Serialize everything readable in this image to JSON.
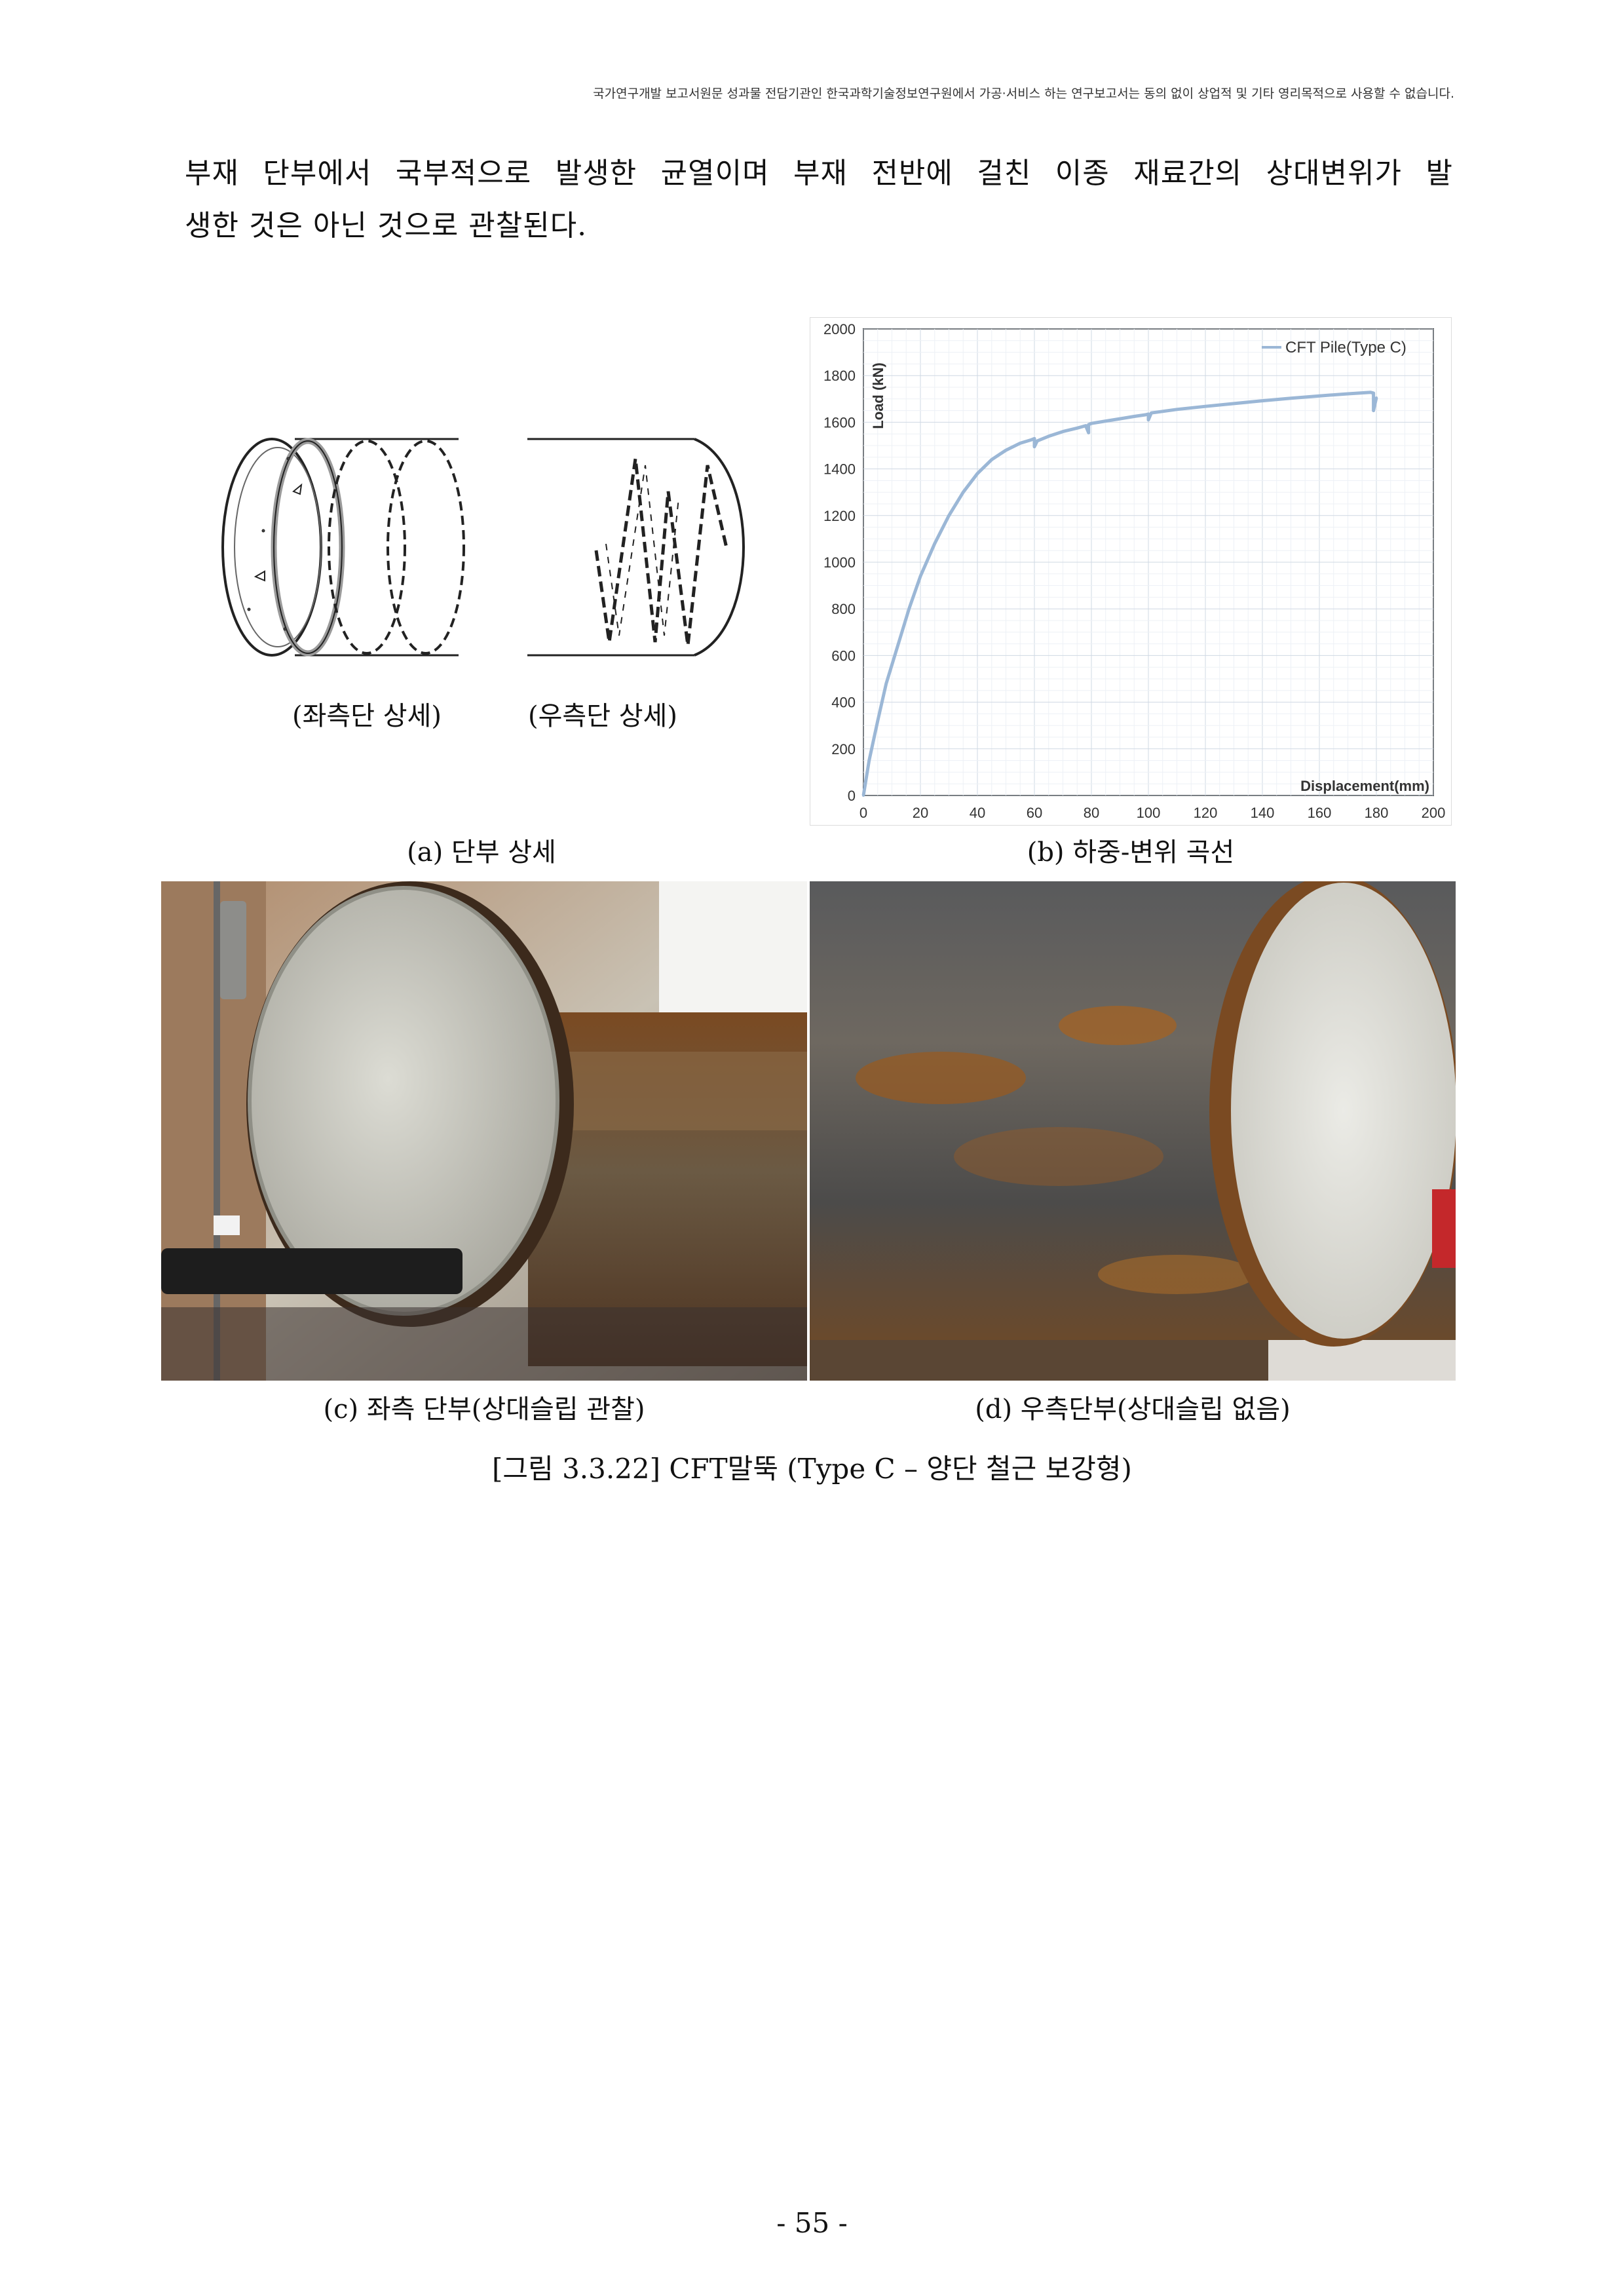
{
  "header_note": "국가연구개발 보고서원문 성과물 전담기관인 한국과학기술정보연구원에서 가공·서비스 하는 연구보고서는 동의 없이 상업적 및 기타 영리목적으로 사용할 수 없습니다.",
  "body": {
    "line1": "부재 단부에서 국부적으로 발생한 균열이며 부재 전반에 걸친 이종 재료간의 상대변위가 발",
    "line2": "생한 것은 아닌 것으로 관찰된다."
  },
  "figure": {
    "sketch_left_label": "(좌측단 상세)",
    "sketch_right_label": "(우측단 상세)",
    "caption_a": "(a) 단부 상세",
    "caption_b": "(b) 하중-변위 곡선",
    "caption_c": "(c) 좌측 단부(상대슬립 관찰)",
    "caption_d": "(d) 우측단부(상대슬립 없음)",
    "caption": "[그림 3.3.22] CFT말뚝 (Type C  –  양단 철근 보강형)"
  },
  "page_number": "- 55 -",
  "chart_data": {
    "type": "line",
    "xlabel": "Displacement(mm)",
    "ylabel": "Load (kN)",
    "xlim": [
      0,
      200
    ],
    "ylim": [
      0,
      2000
    ],
    "xticks": [
      0,
      20,
      40,
      60,
      80,
      100,
      120,
      140,
      160,
      180,
      200
    ],
    "yticks": [
      0,
      200,
      400,
      600,
      800,
      1000,
      1200,
      1400,
      1600,
      1800,
      2000
    ],
    "grid": true,
    "legend_position": "top-right",
    "line_color": "#9bb7d6",
    "series": [
      {
        "name": "CFT Pile(Type C)",
        "x": [
          0,
          2,
          5,
          8,
          12,
          16,
          20,
          25,
          30,
          35,
          40,
          45,
          50,
          55,
          59,
          60,
          60,
          61,
          65,
          70,
          75,
          78,
          79,
          79,
          80,
          85,
          90,
          95,
          99,
          100,
          100,
          101,
          110,
          120,
          130,
          140,
          150,
          160,
          170,
          178,
          179,
          179,
          180
        ],
        "y": [
          0,
          150,
          320,
          480,
          640,
          800,
          940,
          1080,
          1200,
          1300,
          1380,
          1440,
          1480,
          1510,
          1525,
          1530,
          1495,
          1520,
          1540,
          1560,
          1575,
          1585,
          1555,
          1590,
          1595,
          1605,
          1615,
          1625,
          1632,
          1635,
          1610,
          1640,
          1655,
          1668,
          1680,
          1692,
          1703,
          1713,
          1722,
          1728,
          1725,
          1650,
          1705
        ]
      }
    ]
  }
}
